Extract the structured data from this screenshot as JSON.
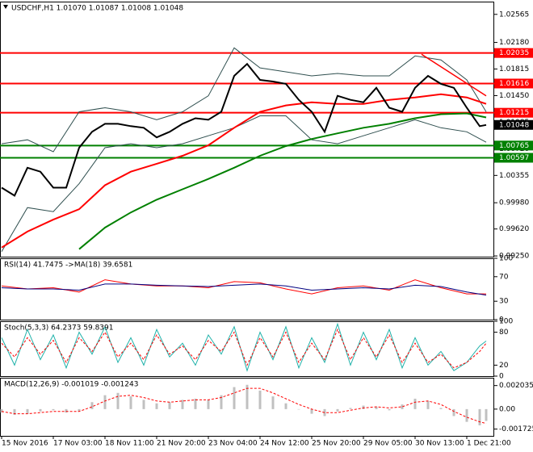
{
  "chart_data": [
    {
      "type": "line",
      "title": "USDCHF,H1  1.01070 1.01087 1.01008 1.01048",
      "xlim": [
        0,
        152.5
      ],
      "ylim": [
        0.9924,
        1.0274
      ],
      "yticks": [
        {
          "value": 1.02565,
          "label": "1.02565"
        },
        {
          "value": 1.0218,
          "label": "1.02180"
        },
        {
          "value": 1.01815,
          "label": "1.01815"
        },
        {
          "value": 1.0145,
          "label": "1.01450"
        },
        {
          "value": 1.01085,
          "label": "1.01085"
        },
        {
          "value": 1.0072,
          "label": "1.00720"
        },
        {
          "value": 1.00355,
          "label": "1.00355"
        },
        {
          "value": 0.9998,
          "label": "0.99980"
        },
        {
          "value": 0.9962,
          "label": "0.99620"
        },
        {
          "value": 0.9925,
          "label": "0.99250"
        }
      ],
      "levels": [
        {
          "value": 1.02035,
          "color": "#ff0000"
        },
        {
          "value": 1.01616,
          "color": "#ff0000"
        },
        {
          "value": 1.01215,
          "color": "#ff0000"
        },
        {
          "value": 1.00765,
          "color": "#008000"
        },
        {
          "value": 1.00597,
          "color": "#008000"
        }
      ],
      "current_price": 1.01048,
      "trendline": {
        "x": [
          130,
          150
        ],
        "values": [
          1.02017,
          1.01447
        ],
        "color": "#ff0000"
      },
      "series": [
        {
          "color": "#2f4f4f",
          "x": [
            0,
            8,
            16,
            24,
            32,
            40,
            48,
            56,
            64,
            72,
            80,
            88,
            96,
            104,
            112,
            120,
            128,
            136,
            144,
            150
          ],
          "values": [
            1.00789,
            1.00844,
            1.0068,
            1.01228,
            1.01283,
            1.01228,
            1.01118,
            1.01228,
            1.01447,
            1.02105,
            1.01831,
            1.01776,
            1.01721,
            1.01754,
            1.01721,
            1.01721,
            1.01995,
            1.0194,
            1.01666,
            1.01228
          ]
        },
        {
          "color": "#2f4f4f",
          "x": [
            0,
            8,
            16,
            24,
            32,
            40,
            48,
            56,
            64,
            72,
            80,
            88,
            96,
            104,
            112,
            120,
            128,
            136,
            144,
            150
          ],
          "values": [
            0.9931,
            0.99913,
            0.99858,
            1.00241,
            1.00735,
            1.00789,
            1.00735,
            1.00789,
            1.00899,
            1.01009,
            1.01173,
            1.01173,
            1.00844,
            1.00789,
            1.00899,
            1.01009,
            1.01118,
            1.01009,
            1.00954,
            1.00811
          ]
        },
        {
          "color": "#ff0000",
          "x": [
            0,
            8,
            16,
            24,
            32,
            40,
            48,
            56,
            64,
            72,
            80,
            88,
            96,
            104,
            112,
            120,
            128,
            136,
            144,
            150
          ],
          "values": [
            0.99365,
            0.99584,
            0.99748,
            0.99891,
            1.0022,
            1.00406,
            1.00515,
            1.00625,
            1.00768,
            1.01009,
            1.01228,
            1.01316,
            1.01359,
            1.01337,
            1.01337,
            1.01392,
            1.01425,
            1.01469,
            1.01425,
            1.01337
          ]
        },
        {
          "color": "#008000",
          "x": [
            24,
            32,
            40,
            48,
            56,
            64,
            72,
            80,
            88,
            96,
            104,
            112,
            120,
            128,
            136,
            144,
            150
          ],
          "values": [
            0.99343,
            0.99639,
            0.99847,
            1.00022,
            1.00165,
            1.00307,
            1.00461,
            1.00625,
            1.00757,
            1.00855,
            1.00932,
            1.01009,
            1.01063,
            1.0114,
            1.01195,
            1.01206,
            1.01151
          ]
        },
        {
          "color": "#000000",
          "x": [
            0,
            4,
            8,
            12,
            16,
            20,
            24,
            28,
            32,
            36,
            40,
            44,
            48,
            52,
            56,
            60,
            64,
            68,
            72,
            76,
            80,
            84,
            88,
            92,
            96,
            100,
            104,
            108,
            112,
            116,
            120,
            124,
            128,
            132,
            136,
            140,
            144,
            148,
            150
          ],
          "values": [
            1.00187,
            1.00077,
            1.00461,
            1.00406,
            1.00187,
            1.00187,
            1.00735,
            1.00954,
            1.01063,
            1.01063,
            1.01031,
            1.01009,
            1.00877,
            1.00954,
            1.01063,
            1.0114,
            1.01118,
            1.01228,
            1.01721,
            1.01885,
            1.01666,
            1.01644,
            1.01611,
            1.01392,
            1.01228,
            1.00954,
            1.01447,
            1.01392,
            1.01359,
            1.01557,
            1.01283,
            1.01228,
            1.01557,
            1.01721,
            1.01611,
            1.01557,
            1.01283,
            1.01031,
            1.01048
          ]
        }
      ]
    },
    {
      "type": "line",
      "title": "RSI(14) 41.7475 ->MA(18) 39.6581",
      "xlim": [
        0,
        152.5
      ],
      "ylim": [
        0,
        100
      ],
      "yticks": [
        100,
        70,
        30,
        0
      ],
      "series": [
        {
          "color": "#ff0000",
          "x": [
            0,
            8,
            16,
            24,
            32,
            40,
            48,
            56,
            64,
            72,
            80,
            88,
            96,
            104,
            112,
            120,
            128,
            136,
            144,
            150
          ],
          "values": [
            55,
            50,
            52,
            45,
            65,
            58,
            55,
            55,
            52,
            62,
            60,
            50,
            42,
            52,
            55,
            48,
            65,
            52,
            42,
            42
          ]
        },
        {
          "color": "#000080",
          "x": [
            0,
            8,
            16,
            24,
            32,
            40,
            48,
            56,
            64,
            72,
            80,
            88,
            96,
            104,
            112,
            120,
            128,
            136,
            144,
            150
          ],
          "values": [
            52,
            50,
            50,
            48,
            58,
            58,
            56,
            55,
            54,
            56,
            58,
            55,
            48,
            50,
            52,
            50,
            56,
            54,
            45,
            40
          ]
        }
      ]
    },
    {
      "type": "line",
      "title": "Stoch(5,3,3) 64.2373 59.8391",
      "xlim": [
        0,
        152.5
      ],
      "ylim": [
        0,
        100
      ],
      "yticks": [
        100,
        80,
        20,
        0
      ],
      "series": [
        {
          "color": "#20b2aa",
          "x": [
            0,
            4,
            8,
            12,
            16,
            20,
            24,
            28,
            32,
            36,
            40,
            44,
            48,
            52,
            56,
            60,
            64,
            68,
            72,
            76,
            80,
            84,
            88,
            92,
            96,
            100,
            104,
            108,
            112,
            116,
            120,
            124,
            128,
            132,
            136,
            140,
            144,
            148,
            150
          ],
          "values": [
            70,
            20,
            85,
            30,
            75,
            15,
            80,
            40,
            90,
            25,
            70,
            20,
            85,
            35,
            60,
            20,
            75,
            40,
            90,
            10,
            80,
            30,
            90,
            15,
            70,
            25,
            95,
            20,
            80,
            30,
            85,
            15,
            70,
            20,
            45,
            10,
            25,
            55,
            64
          ]
        },
        {
          "color": "#ff0000",
          "dash": true,
          "x": [
            0,
            4,
            8,
            12,
            16,
            20,
            24,
            28,
            32,
            36,
            40,
            44,
            48,
            52,
            56,
            60,
            64,
            68,
            72,
            76,
            80,
            84,
            88,
            92,
            96,
            100,
            104,
            108,
            112,
            116,
            120,
            124,
            128,
            132,
            136,
            140,
            144,
            148,
            150
          ],
          "values": [
            60,
            35,
            70,
            40,
            65,
            25,
            70,
            45,
            80,
            35,
            60,
            30,
            75,
            40,
            55,
            30,
            65,
            45,
            80,
            20,
            70,
            35,
            80,
            25,
            60,
            30,
            85,
            30,
            70,
            35,
            75,
            25,
            60,
            25,
            40,
            15,
            25,
            45,
            60
          ]
        }
      ]
    },
    {
      "type": "bar",
      "title": "MACD(12,26,9) -0.001019 -0.001243",
      "xlim": [
        0,
        152.5
      ],
      "ylim": [
        -0.00231,
        0.00271
      ],
      "yticks": [
        0.002035,
        {
          "value": 0,
          "label": "0.00"
        },
        -0.001725
      ],
      "xticks": [
        {
          "value": 0,
          "label": "15 Nov 2016"
        },
        {
          "value": 16,
          "label": "17 Nov 03:00"
        },
        {
          "value": 32,
          "label": "18 Nov 11:00"
        },
        {
          "value": 48,
          "label": "21 Nov 20:00"
        },
        {
          "value": 64,
          "label": "23 Nov 04:00"
        },
        {
          "value": 80,
          "label": "24 Nov 12:00"
        },
        {
          "value": 96,
          "label": "25 Nov 20:00"
        },
        {
          "value": 112,
          "label": "29 Nov 05:00"
        },
        {
          "value": 128,
          "label": "30 Nov 13:00"
        },
        {
          "value": 144,
          "label": "1 Dec 21:00"
        }
      ],
      "series": [
        {
          "type": "bar",
          "color": "#c0c0c0",
          "x": [
            0,
            4,
            8,
            12,
            16,
            20,
            24,
            28,
            32,
            36,
            40,
            44,
            48,
            52,
            56,
            60,
            64,
            68,
            72,
            76,
            80,
            84,
            88,
            92,
            96,
            100,
            104,
            108,
            112,
            116,
            120,
            124,
            128,
            132,
            136,
            140,
            144,
            148,
            150
          ],
          "values": [
            -0.0003,
            -0.0005,
            -0.0004,
            -0.0002,
            -0.0001,
            -0.0003,
            -0.0002,
            0.0006,
            0.0012,
            0.0014,
            0.0011,
            0.0008,
            0.0005,
            0.0006,
            0.0008,
            0.0009,
            0.0008,
            0.0012,
            0.0019,
            0.0021,
            0.0016,
            0.0011,
            0.0005,
            0,
            -0.0004,
            -0.0006,
            -0.0002,
            0.0001,
            0.0003,
            0.0002,
            -0.0001,
            0.0004,
            0.0009,
            0.0007,
            0.0001,
            -0.0006,
            -0.0011,
            -0.0014,
            -0.001019
          ]
        },
        {
          "type": "line",
          "color": "#ff0000",
          "dash": true,
          "x": [
            0,
            4,
            8,
            12,
            16,
            20,
            24,
            28,
            32,
            36,
            40,
            44,
            48,
            52,
            56,
            60,
            64,
            68,
            72,
            76,
            80,
            84,
            88,
            92,
            96,
            100,
            104,
            108,
            112,
            116,
            120,
            124,
            128,
            132,
            136,
            140,
            144,
            148,
            150
          ],
          "values": [
            -0.0002,
            -0.0004,
            -0.0004,
            -0.0003,
            -0.0002,
            -0.0002,
            -0.0002,
            0.0002,
            0.0007,
            0.0011,
            0.0012,
            0.001,
            0.0007,
            0.0006,
            0.0007,
            0.0008,
            0.0008,
            0.001,
            0.0014,
            0.0018,
            0.0018,
            0.0014,
            0.0009,
            0.0004,
            0,
            -0.0003,
            -0.0003,
            -0.0001,
            0.0001,
            0.0002,
            0.0001,
            0.0002,
            0.0006,
            0.0007,
            0.0004,
            -0.0002,
            -0.0007,
            -0.0011,
            -0.001243
          ]
        }
      ]
    }
  ]
}
